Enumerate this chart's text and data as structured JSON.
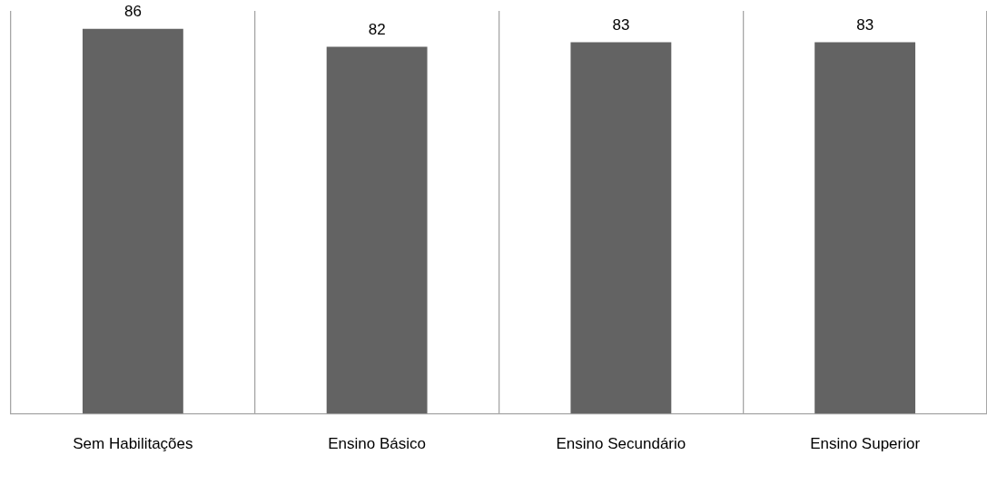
{
  "chart_data": {
    "type": "bar",
    "categories": [
      "Sem Habilitações",
      "Ensino Básico",
      "Ensino Secundário",
      "Ensino Superior"
    ],
    "values": [
      86,
      82,
      83,
      83
    ],
    "color": "#636363",
    "data_labels": true,
    "grid": "x",
    "tick_labels": "x",
    "legend": false
  }
}
